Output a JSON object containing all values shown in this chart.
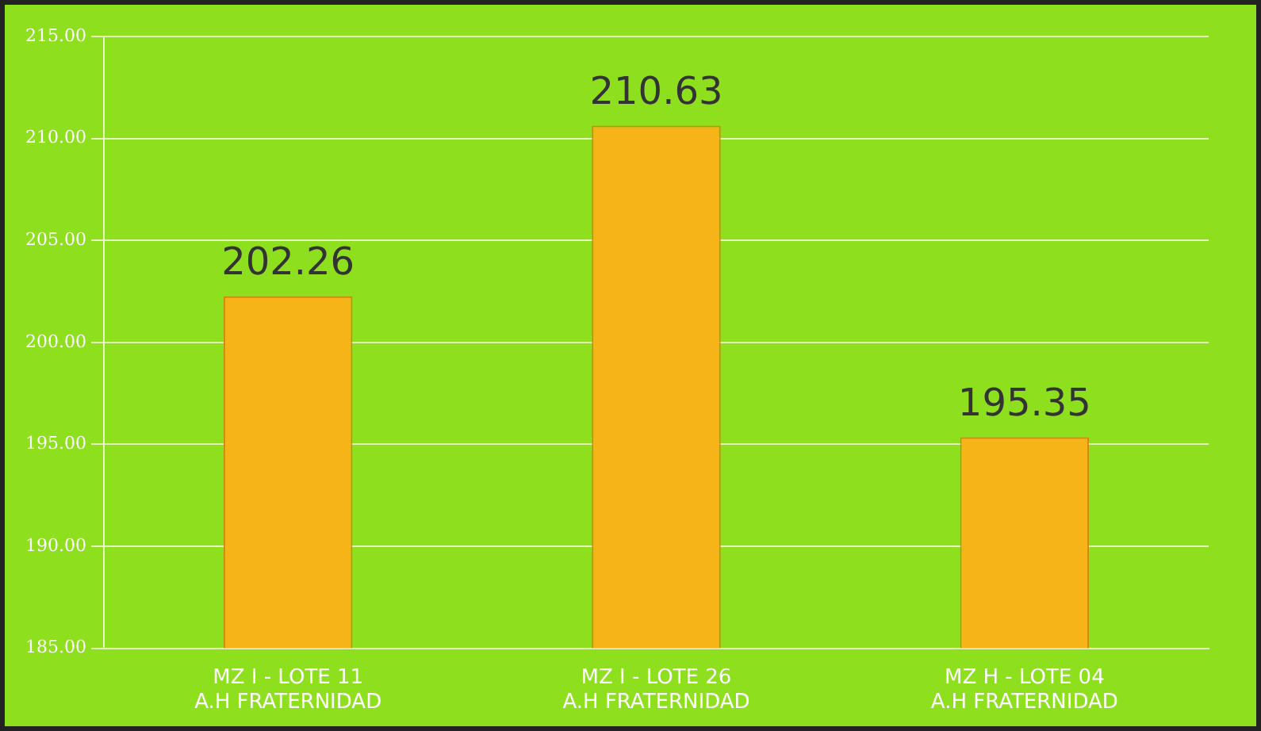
{
  "chart_data": {
    "type": "bar",
    "categories": [
      "MZ I - LOTE 11\nA.H FRATERNIDAD",
      "MZ I - LOTE 26\nA.H FRATERNIDAD",
      "MZ H - LOTE 04\nA.H FRATERNIDAD"
    ],
    "values": [
      202.26,
      210.63,
      195.35
    ],
    "color": "#f7b418",
    "ylim": [
      185,
      215
    ],
    "yticks": [
      {
        "value": 185,
        "label": "185.00"
      },
      {
        "value": 190,
        "label": "190.00"
      },
      {
        "value": 195,
        "label": "195.00"
      },
      {
        "value": 200,
        "label": "200.00"
      },
      {
        "value": 205,
        "label": "205.00"
      },
      {
        "value": 210,
        "label": "210.00"
      },
      {
        "value": 215,
        "label": "215.00"
      }
    ],
    "grid": "y",
    "data_labels": true
  }
}
